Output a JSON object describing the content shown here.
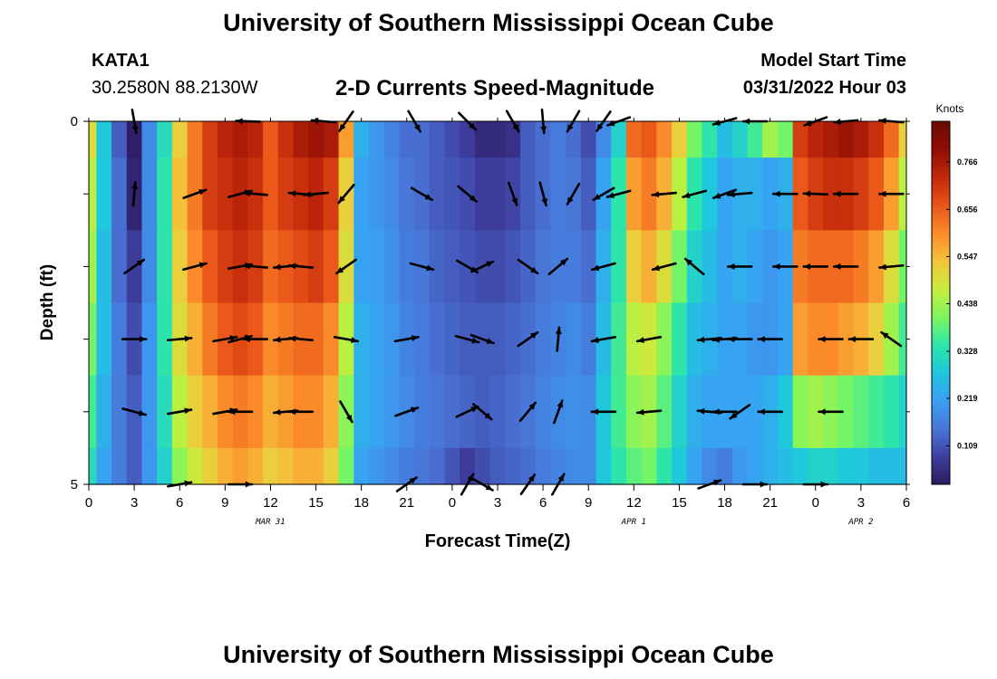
{
  "header": {
    "title": "University of Southern Mississippi Ocean Cube",
    "station_id": "KATA1",
    "station_coords": "30.2580N  88.2130W",
    "subtitle": "2-D Currents Speed-Magnitude",
    "start_label": "Model Start Time",
    "start_value": "03/31/2022 Hour 03"
  },
  "footer": {
    "title": "University of Southern Mississippi Ocean Cube"
  },
  "chart_data": {
    "type": "heatmap",
    "title": "2-D Currents Speed-Magnitude",
    "xlabel": "Forecast Time(Z)",
    "ylabel": "Depth (ft)",
    "x_unit": "hour",
    "xlim": [
      0,
      54
    ],
    "x_ticks": [
      0,
      3,
      6,
      9,
      12,
      15,
      18,
      21,
      24,
      27,
      30,
      33,
      36,
      39,
      42,
      45,
      48,
      51,
      54
    ],
    "x_tick_labels": [
      "0",
      "3",
      "6",
      "9",
      "12",
      "15",
      "18",
      "21",
      "0",
      "3",
      "6",
      "9",
      "12",
      "15",
      "18",
      "21",
      "0",
      "3",
      "6"
    ],
    "date_labels": [
      {
        "x": 12,
        "label": "MAR 31"
      },
      {
        "x": 36,
        "label": "APR 1"
      },
      {
        "x": 51,
        "label": "APR 2"
      }
    ],
    "ylim": [
      0,
      5
    ],
    "y_ticks": [
      0,
      1,
      2,
      3,
      4,
      5
    ],
    "y_tick_labels": [
      "0",
      "",
      "",
      "",
      "",
      "5"
    ],
    "depth_levels": [
      0,
      1,
      2,
      3,
      4,
      5
    ],
    "colorbar": {
      "unit": "Knots",
      "ticks": [
        0.109,
        0.219,
        0.328,
        0.438,
        0.547,
        0.656,
        0.766
      ],
      "range": [
        0.02,
        0.86
      ],
      "colors": [
        "#2b1a5e",
        "#3f3fa0",
        "#4876d8",
        "#3aa0f5",
        "#1fc7dc",
        "#2ee6a8",
        "#7df65e",
        "#c7ee3c",
        "#f4c43b",
        "#fb8a2a",
        "#e85417",
        "#c1280b",
        "#8f0e05",
        "#6a0b03"
      ]
    },
    "hours": [
      0,
      1,
      2,
      3,
      4,
      5,
      6,
      7,
      8,
      9,
      10,
      11,
      12,
      13,
      14,
      15,
      16,
      17,
      18,
      19,
      20,
      21,
      22,
      23,
      24,
      25,
      26,
      27,
      28,
      29,
      30,
      31,
      32,
      33,
      34,
      35,
      36,
      37,
      38,
      39,
      40,
      41,
      42,
      43,
      44,
      45,
      46,
      47,
      48,
      49,
      50,
      51,
      52,
      53,
      54
    ],
    "speed_knots": [
      [
        0.5,
        0.28,
        0.12,
        0.03,
        0.18,
        0.32,
        0.52,
        0.62,
        0.7,
        0.74,
        0.76,
        0.74,
        0.66,
        0.72,
        0.76,
        0.78,
        0.76,
        0.58,
        0.24,
        0.2,
        0.17,
        0.14,
        0.14,
        0.12,
        0.1,
        0.08,
        0.05,
        0.05,
        0.06,
        0.12,
        0.14,
        0.16,
        0.14,
        0.1,
        0.18,
        0.3,
        0.64,
        0.66,
        0.6,
        0.52,
        0.4,
        0.34,
        0.26,
        0.3,
        0.36,
        0.44,
        0.4,
        0.7,
        0.74,
        0.76,
        0.78,
        0.76,
        0.72,
        0.64,
        0.52
      ],
      [
        0.46,
        0.28,
        0.14,
        0.04,
        0.18,
        0.34,
        0.54,
        0.62,
        0.7,
        0.72,
        0.74,
        0.72,
        0.66,
        0.7,
        0.72,
        0.74,
        0.7,
        0.52,
        0.22,
        0.2,
        0.18,
        0.15,
        0.14,
        0.12,
        0.11,
        0.1,
        0.08,
        0.08,
        0.09,
        0.12,
        0.14,
        0.16,
        0.15,
        0.12,
        0.22,
        0.34,
        0.58,
        0.62,
        0.56,
        0.46,
        0.34,
        0.28,
        0.22,
        0.24,
        0.24,
        0.22,
        0.24,
        0.66,
        0.7,
        0.72,
        0.72,
        0.7,
        0.66,
        0.58,
        0.46
      ],
      [
        0.44,
        0.26,
        0.14,
        0.08,
        0.18,
        0.34,
        0.52,
        0.6,
        0.66,
        0.7,
        0.72,
        0.7,
        0.64,
        0.66,
        0.68,
        0.7,
        0.66,
        0.5,
        0.22,
        0.21,
        0.19,
        0.16,
        0.15,
        0.13,
        0.12,
        0.11,
        0.1,
        0.1,
        0.11,
        0.13,
        0.15,
        0.16,
        0.16,
        0.14,
        0.24,
        0.34,
        0.52,
        0.56,
        0.5,
        0.4,
        0.3,
        0.26,
        0.22,
        0.24,
        0.22,
        0.2,
        0.22,
        0.62,
        0.64,
        0.64,
        0.64,
        0.62,
        0.58,
        0.5,
        0.4
      ],
      [
        0.4,
        0.26,
        0.16,
        0.1,
        0.2,
        0.34,
        0.5,
        0.56,
        0.62,
        0.66,
        0.68,
        0.66,
        0.6,
        0.62,
        0.64,
        0.64,
        0.6,
        0.46,
        0.24,
        0.22,
        0.2,
        0.17,
        0.16,
        0.14,
        0.13,
        0.12,
        0.12,
        0.12,
        0.13,
        0.14,
        0.16,
        0.17,
        0.18,
        0.16,
        0.26,
        0.36,
        0.46,
        0.48,
        0.42,
        0.34,
        0.26,
        0.24,
        0.22,
        0.22,
        0.2,
        0.2,
        0.22,
        0.58,
        0.6,
        0.6,
        0.58,
        0.56,
        0.52,
        0.44,
        0.36
      ],
      [
        0.36,
        0.24,
        0.16,
        0.12,
        0.2,
        0.32,
        0.46,
        0.52,
        0.56,
        0.6,
        0.62,
        0.6,
        0.56,
        0.58,
        0.6,
        0.6,
        0.56,
        0.42,
        0.24,
        0.22,
        0.2,
        0.18,
        0.16,
        0.15,
        0.14,
        0.13,
        0.12,
        0.13,
        0.14,
        0.15,
        0.17,
        0.18,
        0.19,
        0.18,
        0.28,
        0.36,
        0.42,
        0.44,
        0.38,
        0.3,
        0.24,
        0.22,
        0.22,
        0.22,
        0.22,
        0.24,
        0.28,
        0.42,
        0.44,
        0.42,
        0.4,
        0.38,
        0.36,
        0.34,
        0.3
      ],
      [
        0.32,
        0.22,
        0.16,
        0.12,
        0.2,
        0.3,
        0.42,
        0.48,
        0.52,
        0.56,
        0.58,
        0.56,
        0.52,
        0.54,
        0.56,
        0.56,
        0.52,
        0.4,
        0.22,
        0.2,
        0.18,
        0.16,
        0.15,
        0.14,
        0.11,
        0.08,
        0.1,
        0.12,
        0.13,
        0.14,
        0.16,
        0.17,
        0.18,
        0.18,
        0.28,
        0.34,
        0.38,
        0.4,
        0.34,
        0.28,
        0.22,
        0.18,
        0.16,
        0.2,
        0.22,
        0.24,
        0.26,
        0.28,
        0.3,
        0.3,
        0.28,
        0.28,
        0.26,
        0.26,
        0.26
      ]
    ],
    "vectors": [
      {
        "depth": 0,
        "points": [
          [
            3,
            -80
          ],
          [
            10.5,
            178
          ],
          [
            15.5,
            175
          ],
          [
            17,
            235
          ],
          [
            21.5,
            300
          ],
          [
            25,
            315
          ],
          [
            28,
            300
          ],
          [
            30,
            275
          ],
          [
            32,
            240
          ],
          [
            34,
            235
          ],
          [
            35,
            200
          ],
          [
            42,
            195
          ],
          [
            44,
            180
          ],
          [
            48,
            200
          ],
          [
            50,
            185
          ],
          [
            53,
            175
          ]
        ]
      },
      {
        "depth": 1,
        "points": [
          [
            3,
            85
          ],
          [
            7,
            20
          ],
          [
            10,
            15
          ],
          [
            11,
            175
          ],
          [
            14,
            175
          ],
          [
            15,
            185
          ],
          [
            17,
            230
          ],
          [
            22,
            330
          ],
          [
            25,
            320
          ],
          [
            28,
            290
          ],
          [
            30,
            285
          ],
          [
            32,
            240
          ],
          [
            34,
            210
          ],
          [
            35,
            195
          ],
          [
            38,
            185
          ],
          [
            40,
            195
          ],
          [
            42,
            200
          ],
          [
            43,
            185
          ],
          [
            46,
            180
          ],
          [
            48,
            178
          ],
          [
            50,
            180
          ],
          [
            53,
            180
          ]
        ]
      },
      {
        "depth": 2,
        "points": [
          [
            3,
            35
          ],
          [
            7,
            15
          ],
          [
            10,
            10
          ],
          [
            11,
            175
          ],
          [
            13,
            185
          ],
          [
            14,
            175
          ],
          [
            17,
            215
          ],
          [
            22,
            345
          ],
          [
            25,
            330
          ],
          [
            26,
            25
          ],
          [
            29,
            325
          ],
          [
            31,
            40
          ],
          [
            34,
            195
          ],
          [
            38,
            195
          ],
          [
            40,
            140
          ],
          [
            43,
            180
          ],
          [
            46,
            180
          ],
          [
            48,
            180
          ],
          [
            50,
            180
          ],
          [
            53,
            185
          ]
        ]
      },
      {
        "depth": 3,
        "points": [
          [
            3,
            0
          ],
          [
            6,
            5
          ],
          [
            9,
            10
          ],
          [
            10,
            15
          ],
          [
            11,
            180
          ],
          [
            13,
            185
          ],
          [
            14,
            175
          ],
          [
            17,
            350
          ],
          [
            21,
            10
          ],
          [
            25,
            345
          ],
          [
            26,
            340
          ],
          [
            29,
            35
          ],
          [
            31,
            85
          ],
          [
            34,
            190
          ],
          [
            37,
            190
          ],
          [
            41,
            185
          ],
          [
            42,
            185
          ],
          [
            43,
            180
          ],
          [
            45,
            180
          ],
          [
            49,
            180
          ],
          [
            51,
            180
          ],
          [
            53,
            145
          ]
        ]
      },
      {
        "depth": 4,
        "points": [
          [
            3,
            345
          ],
          [
            6,
            10
          ],
          [
            9,
            10
          ],
          [
            10,
            180
          ],
          [
            13,
            185
          ],
          [
            14,
            180
          ],
          [
            17,
            300
          ],
          [
            21,
            20
          ],
          [
            25,
            25
          ],
          [
            26,
            320
          ],
          [
            29,
            50
          ],
          [
            31,
            70
          ],
          [
            34,
            180
          ],
          [
            37,
            185
          ],
          [
            41,
            175
          ],
          [
            42,
            180
          ],
          [
            43,
            215
          ],
          [
            45,
            180
          ],
          [
            49,
            180
          ]
        ]
      },
      {
        "depth": 5,
        "points": [
          [
            6,
            10
          ],
          [
            10,
            0
          ],
          [
            21,
            35
          ],
          [
            25,
            60
          ],
          [
            26,
            330
          ],
          [
            29,
            55
          ],
          [
            31,
            60
          ],
          [
            41,
            20
          ],
          [
            44,
            0
          ],
          [
            48,
            0
          ]
        ]
      }
    ]
  }
}
